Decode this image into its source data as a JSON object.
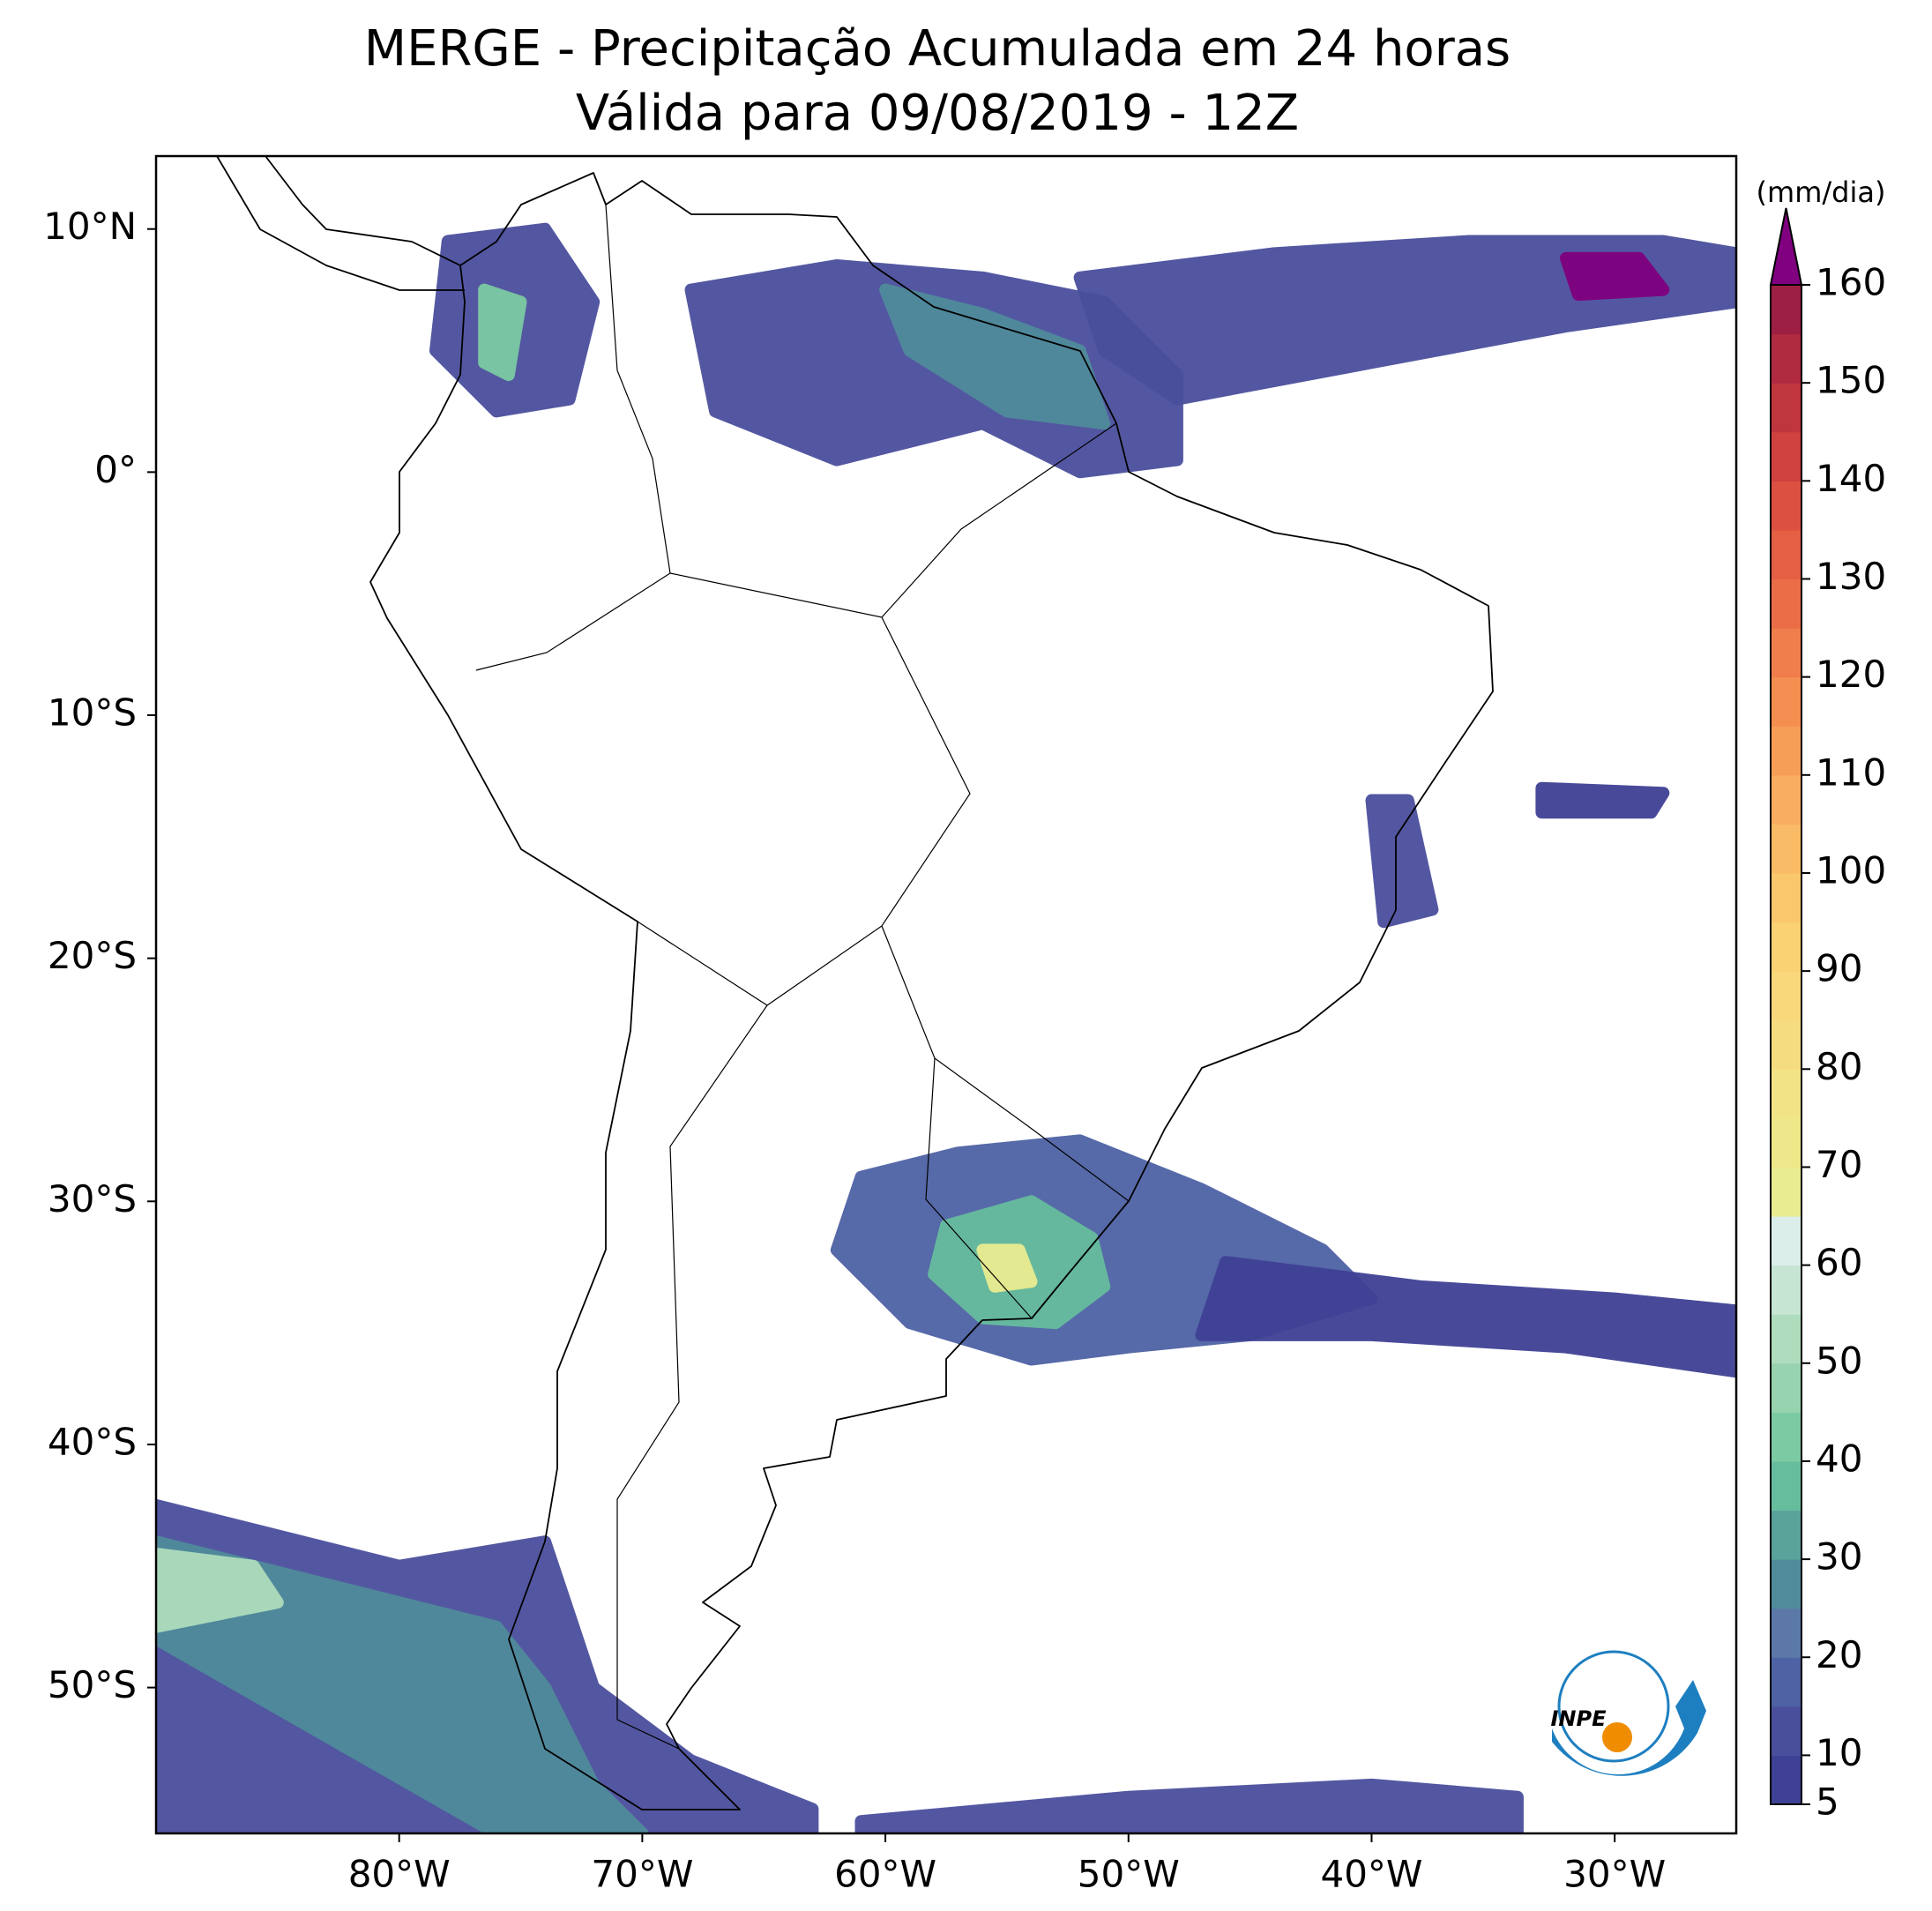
{
  "chart_data": {
    "type": "map",
    "title": "MERGE - Precipitação Acumulada em 24 horas",
    "subtitle": "Válida para 09/08/2019 - 12Z",
    "xlim": [
      -90,
      -25
    ],
    "ylim": [
      -56,
      13
    ],
    "xticks": [
      {
        "value": -80,
        "label": "80°W"
      },
      {
        "value": -70,
        "label": "70°W"
      },
      {
        "value": -60,
        "label": "60°W"
      },
      {
        "value": -50,
        "label": "50°W"
      },
      {
        "value": -40,
        "label": "40°W"
      },
      {
        "value": -30,
        "label": "30°W"
      }
    ],
    "yticks": [
      {
        "value": 10,
        "label": "10°N"
      },
      {
        "value": 0,
        "label": "0°"
      },
      {
        "value": -10,
        "label": "10°S"
      },
      {
        "value": -20,
        "label": "20°S"
      },
      {
        "value": -30,
        "label": "30°S"
      },
      {
        "value": -40,
        "label": "40°S"
      },
      {
        "value": -50,
        "label": "50°S"
      }
    ],
    "colorbar": {
      "label": "(mm/dia)",
      "levels": [
        5,
        10,
        15,
        20,
        25,
        30,
        35,
        40,
        45,
        50,
        55,
        60,
        65,
        70,
        75,
        80,
        85,
        90,
        95,
        100,
        105,
        110,
        115,
        120,
        125,
        130,
        135,
        140,
        145,
        150,
        155,
        160
      ],
      "colors": [
        "#3f4194",
        "#4a4f9c",
        "#4e62a4",
        "#5b78a8",
        "#4f8b9b",
        "#5aa39a",
        "#66bd9e",
        "#7ccaa4",
        "#96d3ae",
        "#aedcbc",
        "#c6e5d3",
        "#dbeee9",
        "#e9ec90",
        "#eee88a",
        "#f2e386",
        "#f6dc80",
        "#f9d77b",
        "#fad274",
        "#fbc76d",
        "#fabb67",
        "#f8ad60",
        "#f69e58",
        "#f48e51",
        "#ef7e4c",
        "#eb6d47",
        "#e45f44",
        "#db5041",
        "#cf4240",
        "#c0363f",
        "#b02a40",
        "#9d1f44"
      ],
      "extend_color": "#800080",
      "ticks": [
        5,
        10,
        20,
        30,
        40,
        50,
        60,
        70,
        80,
        90,
        100,
        110,
        120,
        130,
        140,
        150,
        160
      ]
    },
    "rain_areas": [
      {
        "value": 17,
        "lon": [
          -61,
          -57,
          -52,
          -47,
          -42,
          -40,
          -45,
          -50,
          -54,
          -59,
          -62
        ],
        "lat": [
          -29,
          -28,
          -27.5,
          -29.5,
          -32,
          -34,
          -35.5,
          -36,
          -36.5,
          -35,
          -32
        ]
      },
      {
        "value": 8,
        "lon": [
          -46,
          -38,
          -30,
          -25,
          -25,
          -32,
          -40,
          -47
        ],
        "lat": [
          -32.5,
          -33.5,
          -34,
          -34.5,
          -37,
          -36,
          -35.5,
          -35.5
        ]
      },
      {
        "value": 37,
        "lon": [
          -57.5,
          -54,
          -51.5,
          -51,
          -53,
          -56,
          -58
        ],
        "lat": [
          -31,
          -30,
          -31.5,
          -33.5,
          -35,
          -34.8,
          -33
        ]
      },
      {
        "value": 68,
        "lon": [
          -56,
          -54.5,
          -54,
          -55.5
        ],
        "lat": [
          -32,
          -32,
          -33.3,
          -33.5
        ]
      },
      {
        "value": 13,
        "lon": [
          -68,
          -62,
          -56,
          -51,
          -48,
          -48,
          -52,
          -56,
          -62,
          -67
        ],
        "lat": [
          7.5,
          8.5,
          8,
          7,
          4,
          0.5,
          0,
          2,
          0.5,
          2.5
        ]
      },
      {
        "value": 28,
        "lon": [
          -60,
          -56,
          -52,
          -51,
          -55,
          -59
        ],
        "lat": [
          7.5,
          6.5,
          5,
          2,
          2.5,
          5
        ]
      },
      {
        "value": 12,
        "lon": [
          -52,
          -44,
          -36,
          -28,
          -25,
          -25,
          -32,
          -40,
          -48,
          -51
        ],
        "lat": [
          8,
          9,
          9.5,
          9.5,
          9,
          7,
          6,
          4.5,
          3,
          5
        ]
      },
      {
        "value": 165,
        "lon": [
          -32,
          -29,
          -28,
          -31.5
        ],
        "lat": [
          8.8,
          8.8,
          7.5,
          7.3
        ]
      },
      {
        "value": 14,
        "lon": [
          -78,
          -74,
          -72,
          -73,
          -76,
          -78.5
        ],
        "lat": [
          9.5,
          10,
          7,
          3,
          2.5,
          5
        ]
      },
      {
        "value": 40,
        "lon": [
          -76.5,
          -75,
          -75.5,
          -76.5
        ],
        "lat": [
          7.5,
          7,
          4,
          4.5
        ]
      },
      {
        "value": 12,
        "lon": [
          -90,
          -80,
          -74,
          -73,
          -72,
          -68,
          -63,
          -63,
          -70,
          -90
        ],
        "lat": [
          -42.5,
          -45,
          -44,
          -47,
          -50,
          -53,
          -55,
          -56,
          -56,
          -56
        ]
      },
      {
        "value": 28,
        "lon": [
          -90,
          -82,
          -76,
          -74,
          -72,
          -70,
          -76,
          -90
        ],
        "lat": [
          -44,
          -46,
          -47.5,
          -50,
          -54,
          -56,
          -56,
          -48
        ]
      },
      {
        "value": 52,
        "lon": [
          -90,
          -86,
          -85,
          -90
        ],
        "lat": [
          -44.5,
          -45,
          -46.5,
          -47.5
        ]
      },
      {
        "value": 11,
        "lon": [
          -61,
          -50,
          -40,
          -34,
          -34,
          -61
        ],
        "lat": [
          -55.5,
          -54.5,
          -54,
          -54.5,
          -56,
          -56
        ]
      },
      {
        "value": 11,
        "lon": [
          -40,
          -38.5,
          -37.5,
          -39.5
        ],
        "lat": [
          -13.5,
          -13.5,
          -18,
          -18.5
        ]
      },
      {
        "value": 9,
        "lon": [
          -33,
          -28,
          -28.5,
          -33
        ],
        "lat": [
          -13,
          -13.2,
          -14,
          -14
        ]
      }
    ],
    "logo_text": "INPE"
  }
}
